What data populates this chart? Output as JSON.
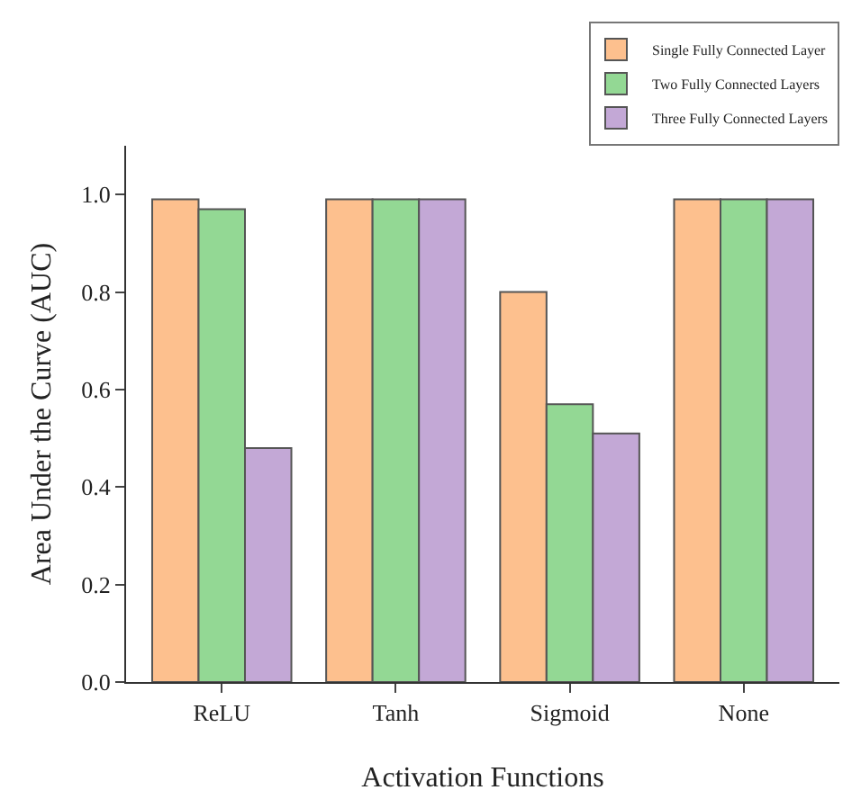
{
  "chart_data": {
    "type": "bar",
    "xlabel": "Activation Functions",
    "ylabel": "Area Under the Curve (AUC)",
    "categories": [
      "ReLU",
      "Tanh",
      "Sigmoid",
      "None"
    ],
    "series": [
      {
        "name": "Single Fully Connected Layer",
        "color": "#fdc08e",
        "values": [
          0.99,
          0.99,
          0.8,
          0.99
        ]
      },
      {
        "name": "Two Fully Connected Layers",
        "color": "#93d894",
        "values": [
          0.97,
          0.99,
          0.57,
          0.99
        ]
      },
      {
        "name": "Three Fully Connected Layers",
        "color": "#c3a8d6",
        "values": [
          0.48,
          0.99,
          0.51,
          0.99
        ]
      }
    ],
    "ylim": [
      0,
      1.1
    ],
    "yticks": [
      {
        "value": 0,
        "label": "0.0"
      },
      0.2,
      0.4,
      0.6,
      0.8,
      {
        "value": 1,
        "label": "1.0"
      }
    ],
    "grid": false,
    "legend": "top right"
  }
}
